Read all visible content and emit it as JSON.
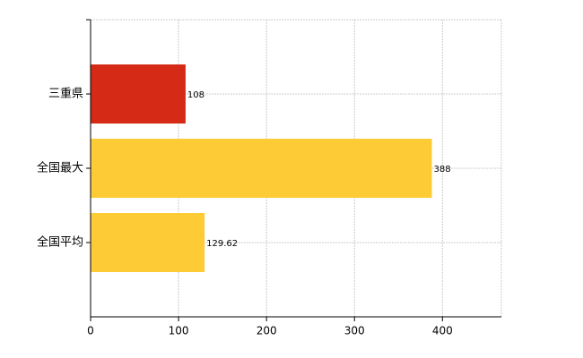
{
  "chart_data": {
    "type": "hbar",
    "categories": [
      "三重県",
      "全国最大",
      "全国平均"
    ],
    "values": [
      108,
      388,
      129.62
    ],
    "colors": [
      "#d42a16",
      "#fdcb36",
      "#fdcb36"
    ],
    "xlim": [
      0,
      467
    ],
    "xticks": [
      0,
      100,
      200,
      300,
      400
    ],
    "grid": true
  }
}
